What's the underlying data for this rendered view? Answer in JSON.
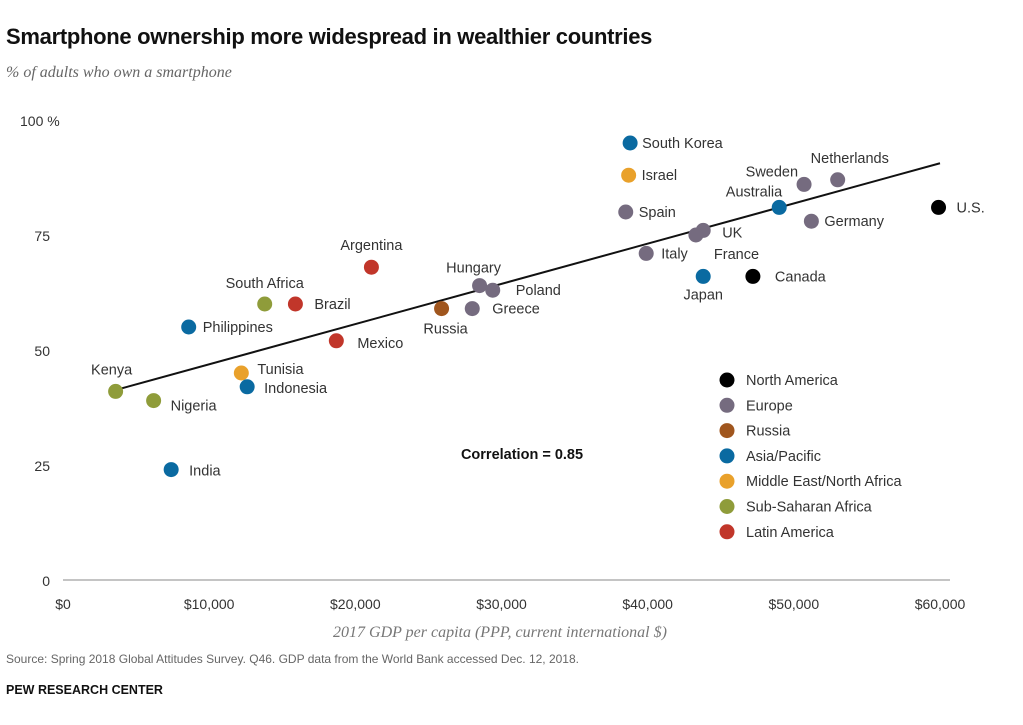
{
  "chart_data": {
    "type": "scatter",
    "title": "Smartphone ownership more widespread in wealthier countries",
    "subtitle": "% of adults who own a smartphone",
    "xlabel": "2017 GDP per capita (PPP, current international $)",
    "ylabel": "% of adults who own a smartphone",
    "xlim": [
      0,
      60000
    ],
    "ylim": [
      0,
      100
    ],
    "xticks": [
      {
        "v": 0,
        "label": "$0"
      },
      {
        "v": 10000,
        "label": "$10,000"
      },
      {
        "v": 20000,
        "label": "$20,000"
      },
      {
        "v": 30000,
        "label": "$30,000"
      },
      {
        "v": 40000,
        "label": "$40,000"
      },
      {
        "v": 50000,
        "label": "$50,000"
      },
      {
        "v": 60000,
        "label": "$60,000"
      }
    ],
    "yticks": [
      {
        "v": 0,
        "label": "0"
      },
      {
        "v": 25,
        "label": "25"
      },
      {
        "v": 50,
        "label": "50"
      },
      {
        "v": 75,
        "label": "75"
      },
      {
        "v": 100,
        "label": "100 %"
      }
    ],
    "grid": false,
    "legend_placement": "bottom-right",
    "regions": [
      {
        "name": "North America",
        "color": "#000000"
      },
      {
        "name": "Europe",
        "color": "#756b7f"
      },
      {
        "name": "Russia",
        "color": "#a0561e"
      },
      {
        "name": "Asia/Pacific",
        "color": "#0a6aa1"
      },
      {
        "name": "Middle East/North Africa",
        "color": "#e9a12b"
      },
      {
        "name": "Sub-Saharan Africa",
        "color": "#8f9c3a"
      },
      {
        "name": "Latin America",
        "color": "#c1362a"
      }
    ],
    "points": [
      {
        "country": "South Korea",
        "region": "Asia/Pacific",
        "gdp": 38800,
        "pct": 95
      },
      {
        "country": "Israel",
        "region": "Middle East/North Africa",
        "gdp": 38700,
        "pct": 88
      },
      {
        "country": "Spain",
        "region": "Europe",
        "gdp": 38500,
        "pct": 80
      },
      {
        "country": "Sweden",
        "region": "Europe",
        "gdp": 50700,
        "pct": 86
      },
      {
        "country": "Netherlands",
        "region": "Europe",
        "gdp": 53000,
        "pct": 87
      },
      {
        "country": "Australia",
        "region": "Asia/Pacific",
        "gdp": 49000,
        "pct": 81
      },
      {
        "country": "Germany",
        "region": "Europe",
        "gdp": 51200,
        "pct": 78
      },
      {
        "country": "U.S.",
        "region": "North America",
        "gdp": 59900,
        "pct": 81
      },
      {
        "country": "UK",
        "region": "Europe",
        "gdp": 43800,
        "pct": 76
      },
      {
        "country": "France",
        "region": "Europe",
        "gdp": 43300,
        "pct": 75
      },
      {
        "country": "Italy",
        "region": "Europe",
        "gdp": 39900,
        "pct": 71
      },
      {
        "country": "Japan",
        "region": "Asia/Pacific",
        "gdp": 43800,
        "pct": 66
      },
      {
        "country": "Canada",
        "region": "North America",
        "gdp": 47200,
        "pct": 66
      },
      {
        "country": "Argentina",
        "region": "Latin America",
        "gdp": 21100,
        "pct": 68
      },
      {
        "country": "Hungary",
        "region": "Europe",
        "gdp": 28500,
        "pct": 64
      },
      {
        "country": "Poland",
        "region": "Europe",
        "gdp": 29400,
        "pct": 63
      },
      {
        "country": "Greece",
        "region": "Europe",
        "gdp": 28000,
        "pct": 59
      },
      {
        "country": "Russia",
        "region": "Russia",
        "gdp": 25900,
        "pct": 59
      },
      {
        "country": "South Africa",
        "region": "Sub-Saharan Africa",
        "gdp": 13800,
        "pct": 60
      },
      {
        "country": "Brazil",
        "region": "Latin America",
        "gdp": 15900,
        "pct": 60
      },
      {
        "country": "Philippines",
        "region": "Asia/Pacific",
        "gdp": 8600,
        "pct": 55
      },
      {
        "country": "Mexico",
        "region": "Latin America",
        "gdp": 18700,
        "pct": 52
      },
      {
        "country": "Tunisia",
        "region": "Middle East/North Africa",
        "gdp": 12200,
        "pct": 45
      },
      {
        "country": "Indonesia",
        "region": "Asia/Pacific",
        "gdp": 12600,
        "pct": 42
      },
      {
        "country": "Kenya",
        "region": "Sub-Saharan Africa",
        "gdp": 3600,
        "pct": 41
      },
      {
        "country": "Nigeria",
        "region": "Sub-Saharan Africa",
        "gdp": 6200,
        "pct": 39
      },
      {
        "country": "India",
        "region": "Asia/Pacific",
        "gdp": 7400,
        "pct": 24
      }
    ],
    "trendline": {
      "x": [
        3600,
        60000
      ],
      "y": [
        41.3,
        90.6
      ]
    },
    "annotation": "Correlation = 0.85"
  },
  "footer": {
    "source": "Source: Spring 2018 Global Attitudes Survey. Q46. GDP data from the World Bank accessed Dec. 12, 2018.",
    "brand": "PEW RESEARCH CENTER"
  }
}
